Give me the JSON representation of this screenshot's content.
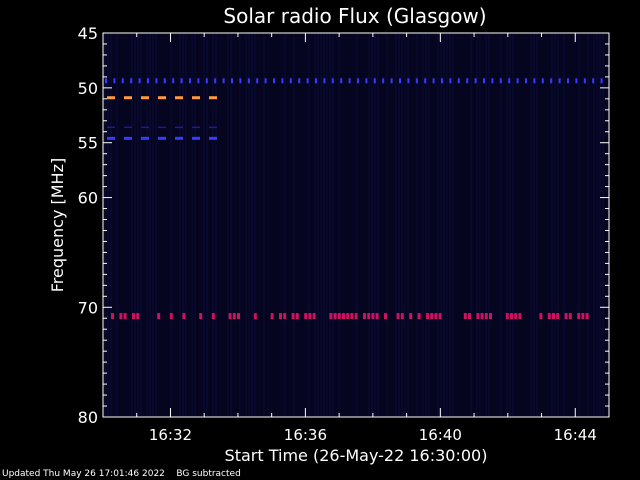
{
  "chart_data": {
    "type": "heatmap",
    "title": "Solar radio Flux (Glasgow)",
    "xlabel": "Start Time (26-May-22 16:30:00)",
    "ylabel": "Frequency [MHz]",
    "x_unit": "minutes after 16:30:00",
    "xlim": [
      0,
      15.0
    ],
    "ylim": [
      45,
      80
    ],
    "y_scale": "linear (inverted, 45 at top)",
    "xticks": [
      {
        "value": 2,
        "label": "16:32"
      },
      {
        "value": 6,
        "label": "16:36"
      },
      {
        "value": 10,
        "label": "16:40"
      },
      {
        "value": 14,
        "label": "16:44"
      }
    ],
    "yticks": [
      {
        "value": 45,
        "label": "45"
      },
      {
        "value": 50,
        "label": "50"
      },
      {
        "value": 55,
        "label": "55"
      },
      {
        "value": 60,
        "label": "60"
      },
      {
        "value": 70,
        "label": "70"
      },
      {
        "value": 80,
        "label": "80"
      }
    ],
    "background_color": "#05051f",
    "colors": {
      "weak": "#1a1aa0",
      "moderate": "#3a3aff",
      "strong": "#d01060",
      "strongest": "#ff9a40"
    },
    "features": [
      {
        "freq": 49.4,
        "t_start": 0.0,
        "t_end": 15.0,
        "pattern": "dotted",
        "intensity": "moderate"
      },
      {
        "freq": 50.9,
        "t_start": 0.0,
        "t_end": 3.6,
        "pattern": "dashed",
        "intensity": "strongest"
      },
      {
        "freq": 53.6,
        "t_start": 0.0,
        "t_end": 3.6,
        "pattern": "dashed",
        "intensity": "weak"
      },
      {
        "freq": 54.6,
        "t_start": 0.0,
        "t_end": 3.6,
        "pattern": "dashed",
        "intensity": "moderate"
      },
      {
        "freq": 70.8,
        "t_start": 0.0,
        "t_end": 14.4,
        "pattern": "intermittent",
        "intensity": "strong"
      }
    ]
  },
  "footer": {
    "updated": "Updated Thu May 26 17:01:46 2022",
    "note": "BG subtracted"
  }
}
